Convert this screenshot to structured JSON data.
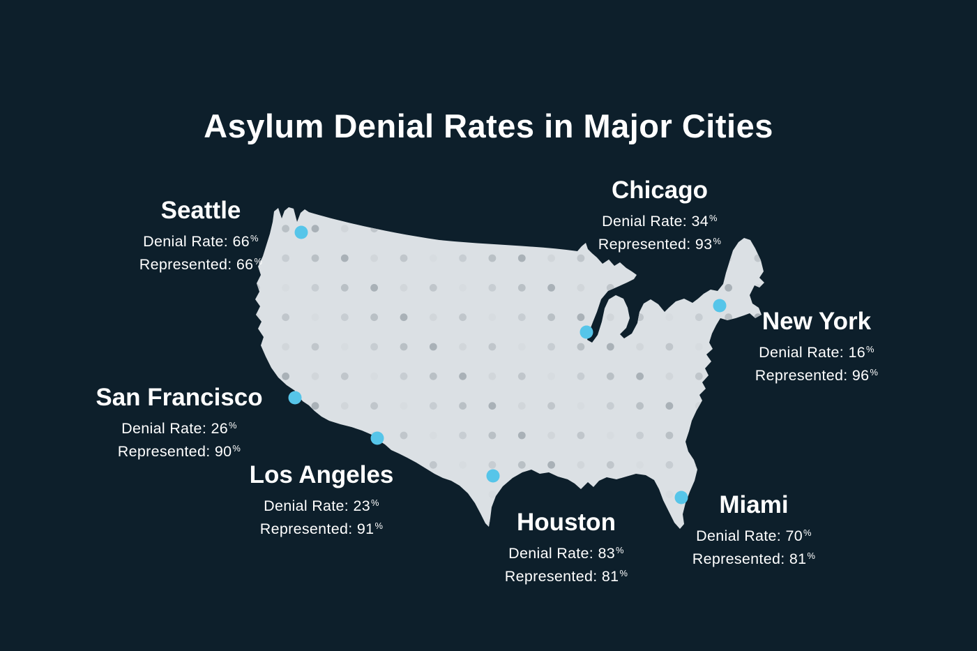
{
  "title": "Asylum Denial Rates in Major Cities",
  "percent_symbol": "%",
  "colors": {
    "background": "#0d1f2b",
    "map_fill": "#dbe0e4",
    "marker": "#56c5e9",
    "text": "#ffffff",
    "dot_grays": [
      "#c7cdd2",
      "#b9c0c5",
      "#a9b1b7",
      "#d1d6da",
      "#c0c6cb",
      "#d7dce0"
    ]
  },
  "cities": [
    {
      "id": "seattle",
      "name": "Seattle",
      "denial_label": "Denial Rate:",
      "denial_value": 66,
      "represented_label": "Represented:",
      "represented_value": 66
    },
    {
      "id": "chicago",
      "name": "Chicago",
      "denial_label": "Denial Rate:",
      "denial_value": 34,
      "represented_label": "Represented:",
      "represented_value": 93
    },
    {
      "id": "new-york",
      "name": "New York",
      "denial_label": "Denial Rate:",
      "denial_value": 16,
      "represented_label": "Represented:",
      "represented_value": 96
    },
    {
      "id": "san-francisco",
      "name": "San Francisco",
      "denial_label": "Denial Rate:",
      "denial_value": 26,
      "represented_label": "Represented:",
      "represented_value": 90
    },
    {
      "id": "los-angeles",
      "name": "Los Angeles",
      "denial_label": "Denial Rate:",
      "denial_value": 23,
      "represented_label": "Represented:",
      "represented_value": 91
    },
    {
      "id": "houston",
      "name": "Houston",
      "denial_label": "Denial Rate:",
      "denial_value": 83,
      "represented_label": "Represented:",
      "represented_value": 81
    },
    {
      "id": "miami",
      "name": "Miami",
      "denial_label": "Denial Rate:",
      "denial_value": 70,
      "represented_label": "Represented:",
      "represented_value": 81
    }
  ]
}
